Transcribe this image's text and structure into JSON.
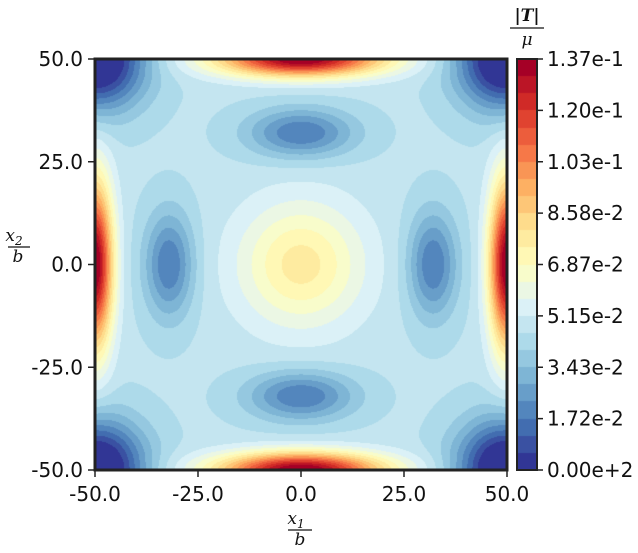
{
  "chart_data": {
    "type": "heatmap",
    "title": "",
    "xlabel": {
      "numerator": "x",
      "subscript": "1",
      "denominator": "b"
    },
    "ylabel": {
      "numerator": "x",
      "subscript": "2",
      "denominator": "b"
    },
    "xlim": [
      -50.0,
      50.0
    ],
    "ylim": [
      -50.0,
      50.0
    ],
    "xticks": [
      "-50.0",
      "-25.0",
      "0.0",
      "25.0",
      "50.0"
    ],
    "yticks": [
      "50.0",
      "25.0",
      "0.0",
      "-25.0",
      "-50.0"
    ],
    "grid": false,
    "colormap": "RdYlBu_r",
    "colorbar": {
      "label": {
        "numerator": "|T|",
        "denominator": "μ"
      },
      "range": [
        0.0,
        0.137
      ],
      "ticks": [
        "1.37e-1",
        "1.20e-1",
        "1.03e-1",
        "8.58e-2",
        "6.87e-2",
        "5.15e-2",
        "3.43e-2",
        "1.72e-2",
        "0.00e+2"
      ],
      "levels": 24
    },
    "field_features": {
      "edge_maxima": [
        [
          -50,
          0
        ],
        [
          50,
          0
        ],
        [
          0,
          50
        ],
        [
          0,
          -50
        ]
      ],
      "corner_minima": [
        [
          -50,
          50
        ],
        [
          50,
          50
        ],
        [
          -50,
          -50
        ],
        [
          50,
          -50
        ]
      ],
      "inner_minima": [
        [
          -32,
          0
        ],
        [
          32,
          0
        ],
        [
          0,
          32
        ],
        [
          0,
          -32
        ]
      ],
      "center_value": 0.075
    }
  }
}
